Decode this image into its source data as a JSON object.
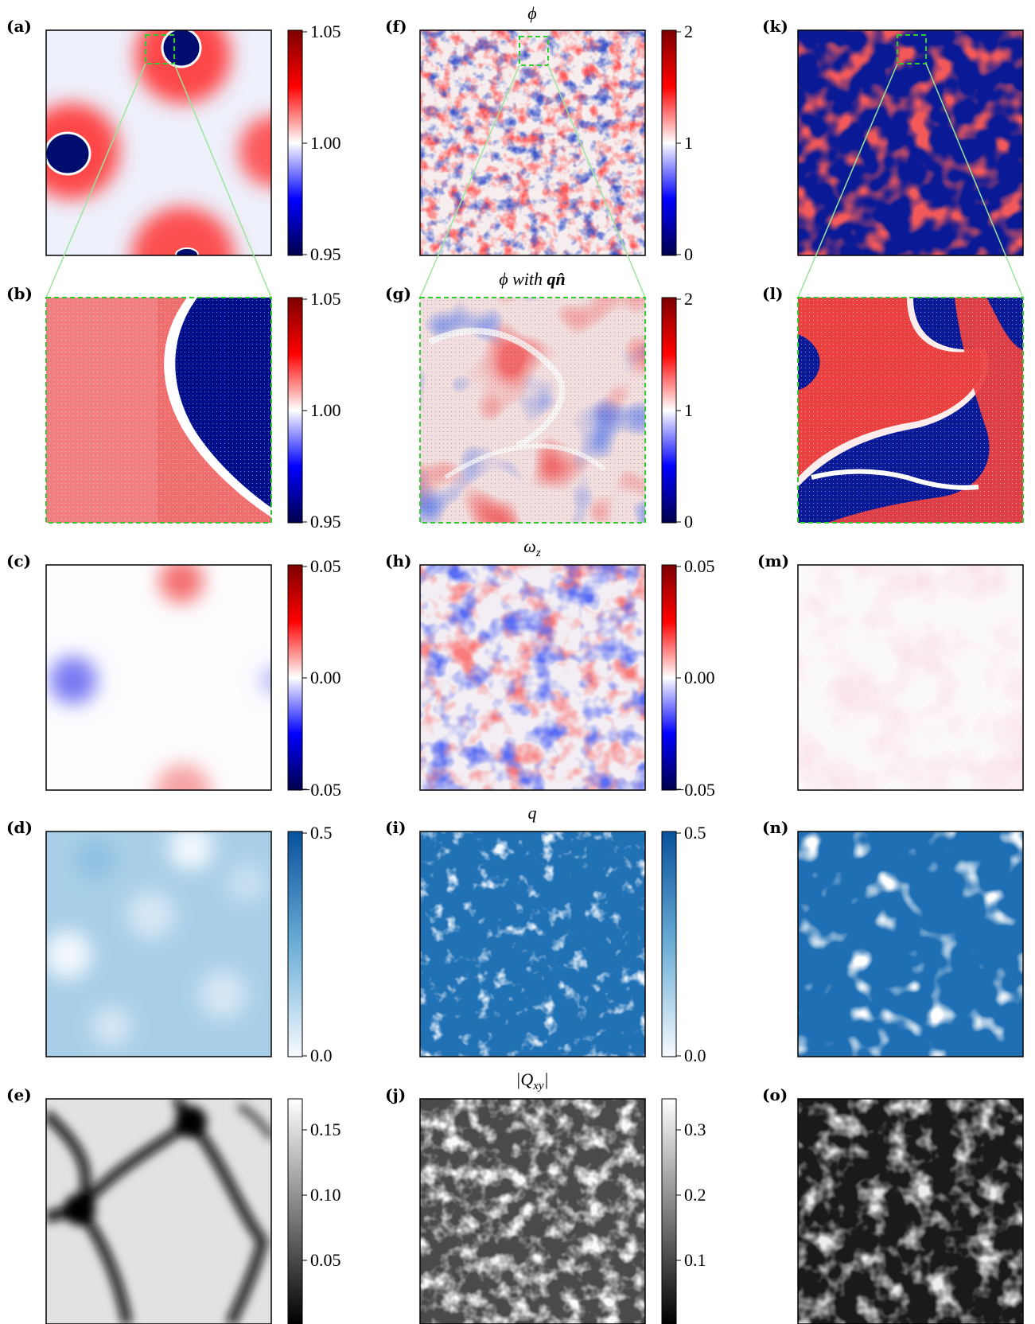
{
  "titles": {
    "phi": "ϕ",
    "phi_qn": "ϕ with qn̂",
    "phi_qn_parts": [
      "ϕ with ",
      "q",
      "n̂"
    ],
    "omega": "ω",
    "omega_sub": "z",
    "q": "q",
    "qxy_pre": "|Q",
    "qxy_sub": "xy",
    "qxy_post": "|"
  },
  "panel_labels": [
    "(a)",
    "(b)",
    "(c)",
    "(d)",
    "(e)",
    "(f)",
    "(g)",
    "(h)",
    "(i)",
    "(j)",
    "(k)",
    "(l)",
    "(m)",
    "(n)",
    "(o)"
  ],
  "colorbars": {
    "phi_left": {
      "ticks": [
        "1.05",
        "1.00",
        "0.95"
      ],
      "colormap": "seismic"
    },
    "phi_zoom_left": {
      "ticks": [
        "1.05",
        "1.00",
        "0.95"
      ],
      "colormap": "seismic"
    },
    "phi_mid": {
      "ticks": [
        "2",
        "1",
        "0"
      ],
      "colormap": "seismic"
    },
    "phi_zoom_mid": {
      "ticks": [
        "2",
        "1",
        "0"
      ],
      "colormap": "seismic"
    },
    "omega_left": {
      "ticks": [
        "0.05",
        "0.00",
        "−0.05"
      ],
      "colormap": "seismic"
    },
    "omega_mid": {
      "ticks": [
        "0.05",
        "0.00",
        "−0.05"
      ],
      "colormap": "seismic"
    },
    "q_left": {
      "ticks": [
        "0.5",
        "0.0"
      ],
      "colormap": "blues"
    },
    "q_mid": {
      "ticks": [
        "0.5",
        "0.0"
      ],
      "colormap": "blues"
    },
    "qxy_left": {
      "ticks": [
        "0.15",
        "0.10",
        "0.05"
      ],
      "colormap": "gray"
    },
    "qxy_mid": {
      "ticks": [
        "0.3",
        "0.2",
        "0.1"
      ],
      "colormap": "gray"
    }
  },
  "colors": {
    "red": "#c8102e",
    "blue": "#0a1a8c",
    "zoom_box": "#2ecc2e",
    "blues_dark": "#0b4f91",
    "blues_light": "#e8f1fa"
  }
}
